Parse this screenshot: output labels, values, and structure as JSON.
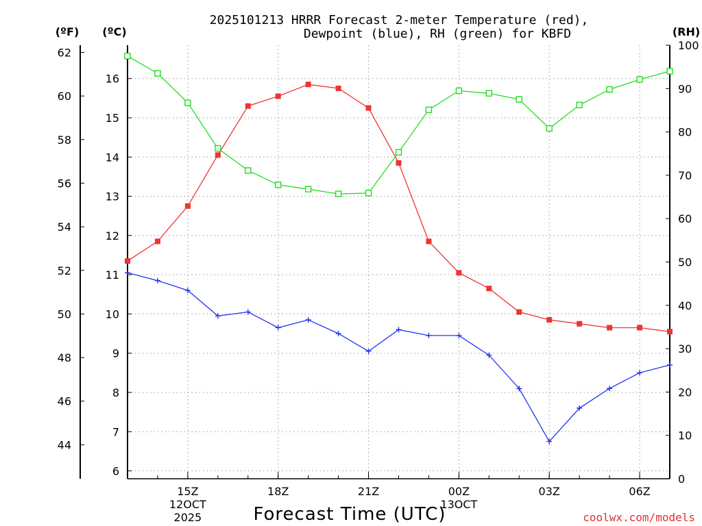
{
  "chart_data": {
    "type": "line",
    "title_line1": "2025101213 HRRR Forecast 2-meter Temperature (red),",
    "title_line2": "Dewpoint (blue), RH (green) for KBFD",
    "xlabel": "Forecast Time (UTC)",
    "credit": "coolwx.com/models",
    "units": {
      "fahrenheit": "(ºF)",
      "celsius": "(ºC)",
      "rh": "(RH)"
    },
    "x_hours": [
      13,
      14,
      15,
      16,
      17,
      18,
      19,
      20,
      21,
      22,
      23,
      24,
      25,
      26,
      27,
      28,
      29,
      30,
      31
    ],
    "x_range": [
      13,
      31
    ],
    "x_ticks": [
      {
        "hour": 15,
        "label": "15Z",
        "sub1": "12OCT",
        "sub2": "2025"
      },
      {
        "hour": 18,
        "label": "18Z",
        "sub1": "",
        "sub2": ""
      },
      {
        "hour": 21,
        "label": "21Z",
        "sub1": "",
        "sub2": ""
      },
      {
        "hour": 24,
        "label": "00Z",
        "sub1": "13OCT",
        "sub2": ""
      },
      {
        "hour": 27,
        "label": "03Z",
        "sub1": "",
        "sub2": ""
      },
      {
        "hour": 30,
        "label": "06Z",
        "sub1": "",
        "sub2": ""
      }
    ],
    "celsius_axis": {
      "range": [
        5.8,
        16.85
      ],
      "ticks": [
        6,
        7,
        8,
        9,
        10,
        11,
        12,
        13,
        14,
        15,
        16
      ]
    },
    "fahrenheit_axis": {
      "ticks": [
        44,
        46,
        48,
        50,
        52,
        54,
        56,
        58,
        60,
        62
      ]
    },
    "rh_axis": {
      "range": [
        0,
        100
      ],
      "ticks": [
        0,
        10,
        20,
        30,
        40,
        50,
        60,
        70,
        80,
        90,
        100
      ]
    },
    "series": [
      {
        "name": "2-meter Temperature",
        "axis": "celsius",
        "color": "#ee3333",
        "marker": "filled-square",
        "values": [
          11.35,
          11.85,
          12.75,
          14.05,
          15.3,
          15.55,
          15.85,
          15.75,
          15.25,
          13.85,
          11.85,
          11.05,
          10.65,
          10.05,
          9.85,
          9.75,
          9.65,
          9.65,
          9.55
        ]
      },
      {
        "name": "Dewpoint",
        "axis": "celsius",
        "color": "#2233ee",
        "marker": "plus",
        "values": [
          11.05,
          10.85,
          10.6,
          9.95,
          10.05,
          9.65,
          9.85,
          9.5,
          9.05,
          9.6,
          9.45,
          9.45,
          8.95,
          8.1,
          6.75,
          7.6,
          8.1,
          8.5,
          8.7
        ]
      },
      {
        "name": "RH",
        "axis": "rh",
        "color": "#22dd22",
        "marker": "open-square",
        "values": [
          97.5,
          93.5,
          86.7,
          76.2,
          71.1,
          67.8,
          66.8,
          65.7,
          65.9,
          75.3,
          85.1,
          89.5,
          88.9,
          87.5,
          80.8,
          86.2,
          89.8,
          92.1,
          94.0
        ]
      }
    ]
  }
}
